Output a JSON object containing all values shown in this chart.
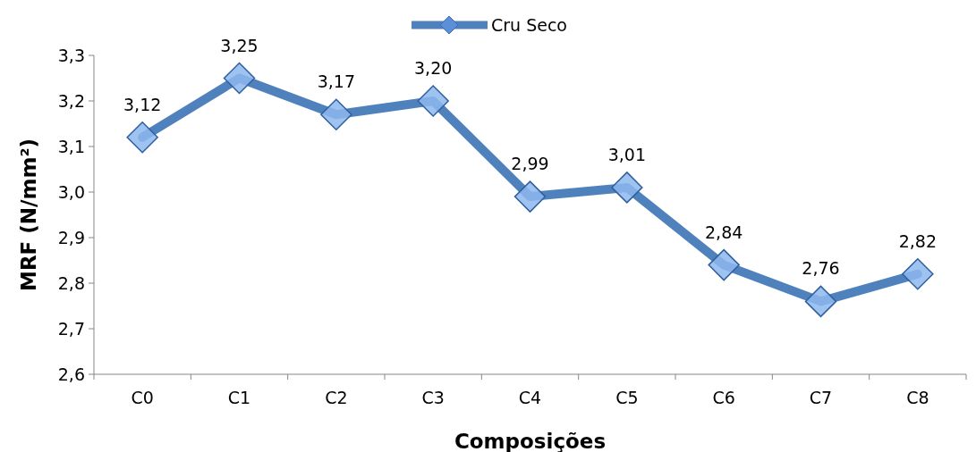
{
  "chart_data": {
    "type": "line",
    "xlabel": "Composições",
    "ylabel": "MRF (N/mm²)",
    "categories": [
      "C0",
      "C1",
      "C2",
      "C3",
      "C4",
      "C5",
      "C6",
      "C7",
      "C8"
    ],
    "series": [
      {
        "name": "Cru Seco",
        "color": "#4f81bd",
        "values": [
          3.12,
          3.25,
          3.17,
          3.2,
          2.99,
          3.01,
          2.84,
          2.76,
          2.82
        ],
        "value_labels": [
          "3,12",
          "3,25",
          "3,17",
          "3,20",
          "2,99",
          "3,01",
          "2,84",
          "2,76",
          "2,82"
        ]
      }
    ],
    "ylim": [
      2.6,
      3.3
    ],
    "yticks": [
      {
        "value": 2.6,
        "label": "2,6"
      },
      {
        "value": 2.7,
        "label": "2,7"
      },
      {
        "value": 2.8,
        "label": "2,8"
      },
      {
        "value": 2.9,
        "label": "2,9"
      },
      {
        "value": 3.0,
        "label": "3,0"
      },
      {
        "value": 3.1,
        "label": "3,1"
      },
      {
        "value": 3.2,
        "label": "3,2"
      },
      {
        "value": 3.3,
        "label": "3,3"
      }
    ],
    "grid": false,
    "legend": "top",
    "marker": "diamond",
    "line_style": "solid"
  }
}
